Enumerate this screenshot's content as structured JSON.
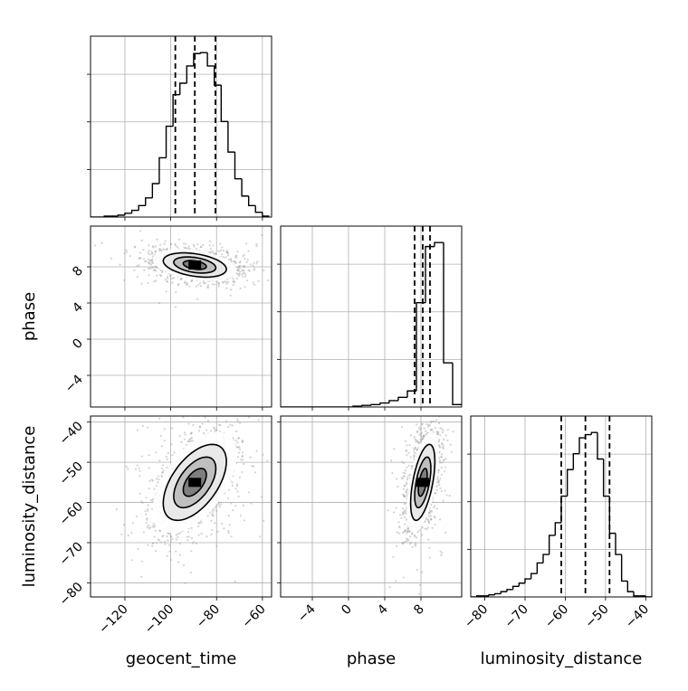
{
  "chart_data": {
    "type": "corner",
    "parameters": [
      "geocent_time",
      "phase",
      "luminosity_distance"
    ],
    "ranges": {
      "geocent_time": [
        -135,
        -56
      ],
      "phase": [
        -7.5,
        12.5
      ],
      "luminosity_distance": [
        -83.5,
        -38.5
      ]
    },
    "ticks": {
      "geocent_time": [
        -120,
        -100,
        -80,
        -60
      ],
      "phase": [
        -4,
        0,
        4,
        8
      ],
      "luminosity_distance": [
        -80,
        -70,
        -60,
        -50,
        -40
      ]
    },
    "tick_labels": {
      "geocent_time": [
        "−120",
        "−100",
        "−80",
        "−60"
      ],
      "phase": [
        "−4",
        "0",
        "4",
        "8"
      ],
      "luminosity_distance": [
        "−80",
        "−70",
        "−60",
        "−50",
        "−40"
      ]
    },
    "quantiles": {
      "geocent_time": [
        -98,
        -89.5,
        -80.5
      ],
      "phase": [
        7.3,
        8.2,
        9.0
      ],
      "luminosity_distance": [
        -61,
        -55,
        -49
      ]
    },
    "histograms": {
      "geocent_time": {
        "edges": [
          -135,
          -132,
          -129,
          -126,
          -123,
          -120,
          -117,
          -114,
          -111,
          -108,
          -105,
          -102,
          -99,
          -96,
          -93,
          -90,
          -87,
          -84,
          -81,
          -78,
          -75,
          -72,
          -69,
          -66,
          -63,
          -60,
          -57
        ],
        "counts": [
          0,
          0,
          1,
          1,
          2,
          4,
          7,
          12,
          20,
          35,
          62,
          95,
          128,
          140,
          158,
          171,
          172,
          158,
          138,
          100,
          68,
          40,
          22,
          12,
          5,
          1
        ]
      },
      "phase": {
        "edges": [
          -7.5,
          -6.5,
          -5.5,
          -4.5,
          -3.5,
          -2.5,
          -1.5,
          -0.5,
          0.5,
          1.5,
          2.5,
          3.5,
          4.5,
          5.5,
          6.5,
          7.5,
          8.5,
          9.5,
          10.5,
          11.5,
          12.5
        ],
        "counts": [
          0,
          0,
          0,
          0,
          0,
          0,
          0,
          0,
          1,
          2,
          3,
          5,
          8,
          12,
          20,
          130,
          200,
          205,
          55,
          3
        ]
      },
      "luminosity_distance": {
        "edges": [
          -83.5,
          -82,
          -80.5,
          -79,
          -77.5,
          -76,
          -74.5,
          -73,
          -71.5,
          -70,
          -68.5,
          -67,
          -65.5,
          -64,
          -62.5,
          -61,
          -59.5,
          -58,
          -56.5,
          -55,
          -53.5,
          -52,
          -50.5,
          -49,
          -47.5,
          -46,
          -44.5,
          -43,
          -41.5,
          -40,
          -38.5
        ],
        "counts": [
          0,
          1,
          1,
          2,
          3,
          5,
          7,
          10,
          13,
          17,
          22,
          32,
          40,
          58,
          70,
          95,
          120,
          135,
          150,
          153,
          155,
          130,
          95,
          60,
          40,
          15,
          5,
          1,
          1,
          0
        ]
      }
    },
    "grid": true,
    "line_color": "#000000",
    "scatter_color": "#9e9e9e"
  }
}
